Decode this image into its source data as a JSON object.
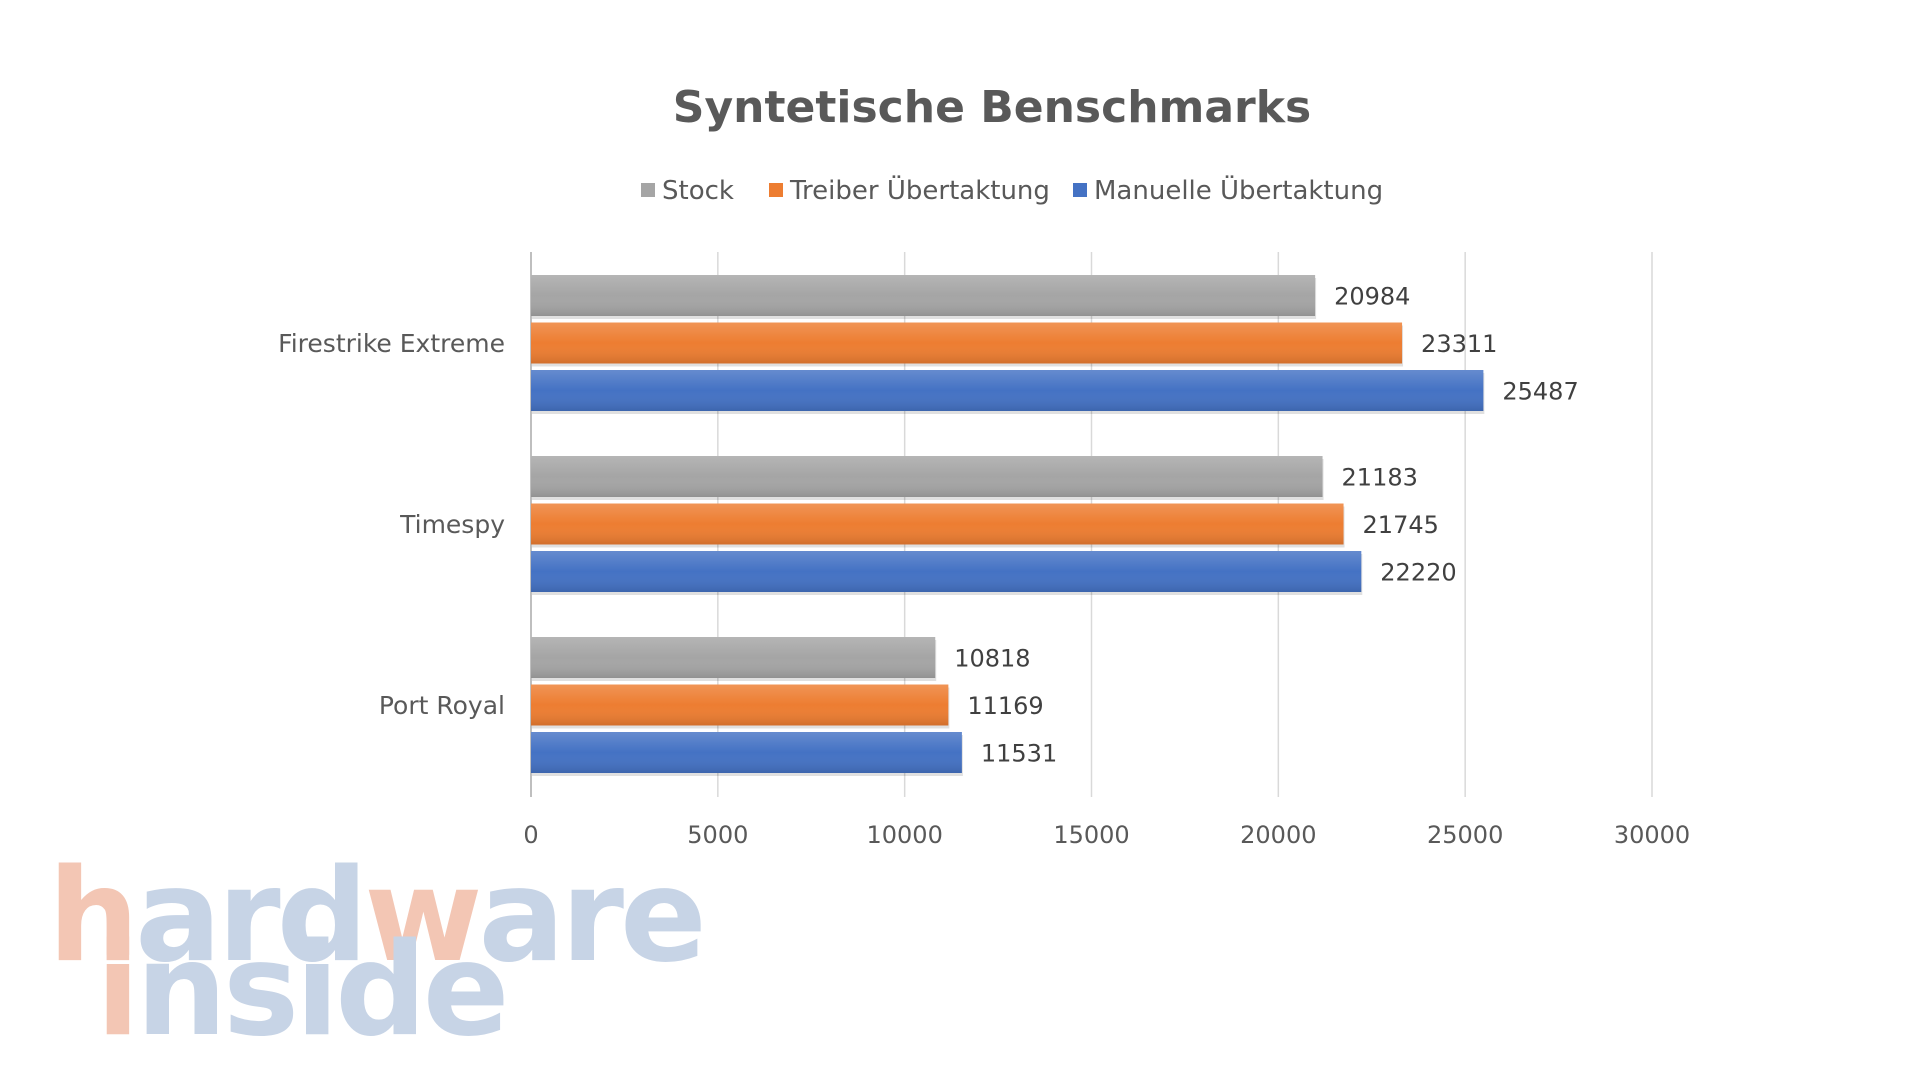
{
  "chart_data": {
    "type": "bar",
    "orientation": "horizontal",
    "title": "Syntetische Benschmarks",
    "categories": [
      "Firestrike Extreme",
      "Timespy",
      "Port Royal"
    ],
    "series": [
      {
        "name": "Stock",
        "color": "#a5a5a5",
        "values": [
          20984,
          21183,
          10818
        ]
      },
      {
        "name": "Treiber Übertaktung",
        "color": "#ed7d31",
        "values": [
          23311,
          21745,
          11169
        ]
      },
      {
        "name": "Manuelle Übertaktung",
        "color": "#4472c4",
        "values": [
          25487,
          22220,
          11531
        ]
      }
    ],
    "xlim": [
      0,
      30000
    ],
    "xticks": [
      0,
      5000,
      10000,
      15000,
      20000,
      25000,
      30000
    ],
    "grid": true,
    "legend_position": "top-center",
    "data_labels": true,
    "xlabel": "",
    "ylabel": ""
  },
  "watermark": {
    "line1": "hardware",
    "line2": "inside",
    "color_orange": "#f3c6b4",
    "color_blue": "#c7d4e6"
  }
}
